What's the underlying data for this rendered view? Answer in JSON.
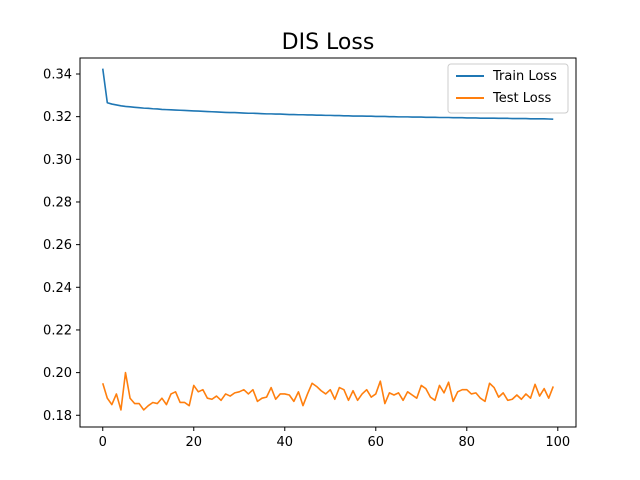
{
  "chart_data": {
    "type": "line",
    "title": "DIS Loss",
    "xlabel": "",
    "ylabel": "",
    "xlim": [
      -5.0,
      104.0
    ],
    "ylim": [
      0.1745,
      0.3475
    ],
    "x_ticks": [
      0,
      20,
      40,
      60,
      80,
      100
    ],
    "y_ticks": [
      0.18,
      0.2,
      0.22,
      0.24,
      0.26,
      0.28,
      0.3,
      0.32,
      0.34
    ],
    "y_tick_labels": [
      "0.18",
      "0.20",
      "0.22",
      "0.24",
      "0.26",
      "0.28",
      "0.30",
      "0.32",
      "0.34"
    ],
    "legend_position": "top-right",
    "grid": false,
    "series": [
      {
        "name": "Train Loss",
        "color": "#1f77b4",
        "x": [
          0,
          1,
          2,
          3,
          4,
          5,
          6,
          7,
          8,
          9,
          10,
          11,
          12,
          13,
          14,
          15,
          16,
          17,
          18,
          19,
          20,
          21,
          22,
          23,
          24,
          25,
          26,
          27,
          28,
          29,
          30,
          31,
          32,
          33,
          34,
          35,
          36,
          37,
          38,
          39,
          40,
          41,
          42,
          43,
          44,
          45,
          46,
          47,
          48,
          49,
          50,
          51,
          52,
          53,
          54,
          55,
          56,
          57,
          58,
          59,
          60,
          61,
          62,
          63,
          64,
          65,
          66,
          67,
          68,
          69,
          70,
          71,
          72,
          73,
          74,
          75,
          76,
          77,
          78,
          79,
          80,
          81,
          82,
          83,
          84,
          85,
          86,
          87,
          88,
          89,
          90,
          91,
          92,
          93,
          94,
          95,
          96,
          97,
          98,
          99
        ],
        "values": [
          0.3425,
          0.3265,
          0.3259,
          0.3255,
          0.3251,
          0.3248,
          0.3246,
          0.3244,
          0.3242,
          0.324,
          0.3239,
          0.3237,
          0.3236,
          0.3234,
          0.3233,
          0.3232,
          0.3231,
          0.323,
          0.3229,
          0.3228,
          0.3227,
          0.3226,
          0.3225,
          0.3224,
          0.3223,
          0.3222,
          0.3221,
          0.322,
          0.3219,
          0.3219,
          0.3218,
          0.3217,
          0.3216,
          0.3216,
          0.3215,
          0.3214,
          0.3213,
          0.3213,
          0.3212,
          0.3212,
          0.3211,
          0.321,
          0.321,
          0.3209,
          0.3209,
          0.3208,
          0.3208,
          0.3207,
          0.3207,
          0.3206,
          0.3206,
          0.3205,
          0.3205,
          0.3204,
          0.3204,
          0.3203,
          0.3203,
          0.3203,
          0.3202,
          0.3202,
          0.3201,
          0.3201,
          0.3201,
          0.32,
          0.32,
          0.3199,
          0.3199,
          0.3199,
          0.3198,
          0.3198,
          0.3198,
          0.3197,
          0.3197,
          0.3197,
          0.3196,
          0.3196,
          0.3196,
          0.3195,
          0.3195,
          0.3195,
          0.3194,
          0.3194,
          0.3194,
          0.3193,
          0.3193,
          0.3193,
          0.3193,
          0.3192,
          0.3192,
          0.3192,
          0.3191,
          0.3191,
          0.3191,
          0.3191,
          0.319,
          0.319,
          0.319,
          0.319,
          0.3189,
          0.3188
        ]
      },
      {
        "name": "Test Loss",
        "color": "#ff7f0e",
        "x": [
          0,
          1,
          2,
          3,
          4,
          5,
          6,
          7,
          8,
          9,
          10,
          11,
          12,
          13,
          14,
          15,
          16,
          17,
          18,
          19,
          20,
          21,
          22,
          23,
          24,
          25,
          26,
          27,
          28,
          29,
          30,
          31,
          32,
          33,
          34,
          35,
          36,
          37,
          38,
          39,
          40,
          41,
          42,
          43,
          44,
          45,
          46,
          47,
          48,
          49,
          50,
          51,
          52,
          53,
          54,
          55,
          56,
          57,
          58,
          59,
          60,
          61,
          62,
          63,
          64,
          65,
          66,
          67,
          68,
          69,
          70,
          71,
          72,
          73,
          74,
          75,
          76,
          77,
          78,
          79,
          80,
          81,
          82,
          83,
          84,
          85,
          86,
          87,
          88,
          89,
          90,
          91,
          92,
          93,
          94,
          95,
          96,
          97,
          98,
          99
        ],
        "values": [
          0.195,
          0.188,
          0.185,
          0.19,
          0.1825,
          0.2,
          0.188,
          0.1855,
          0.1855,
          0.1825,
          0.1845,
          0.186,
          0.1855,
          0.188,
          0.185,
          0.19,
          0.191,
          0.186,
          0.186,
          0.1845,
          0.194,
          0.191,
          0.192,
          0.188,
          0.1875,
          0.189,
          0.187,
          0.19,
          0.189,
          0.1905,
          0.191,
          0.192,
          0.19,
          0.192,
          0.1865,
          0.188,
          0.1885,
          0.193,
          0.1875,
          0.19,
          0.19,
          0.1895,
          0.1865,
          0.191,
          0.1845,
          0.19,
          0.195,
          0.1935,
          0.1915,
          0.19,
          0.192,
          0.1875,
          0.193,
          0.192,
          0.187,
          0.1915,
          0.187,
          0.19,
          0.192,
          0.1885,
          0.19,
          0.196,
          0.1855,
          0.1905,
          0.1895,
          0.1905,
          0.187,
          0.191,
          0.1895,
          0.188,
          0.194,
          0.1925,
          0.1885,
          0.187,
          0.194,
          0.1905,
          0.1955,
          0.1865,
          0.191,
          0.192,
          0.192,
          0.19,
          0.1905,
          0.188,
          0.1865,
          0.195,
          0.193,
          0.1885,
          0.1905,
          0.187,
          0.1875,
          0.1895,
          0.1875,
          0.19,
          0.188,
          0.1945,
          0.189,
          0.1925,
          0.188,
          0.1935
        ]
      }
    ]
  }
}
